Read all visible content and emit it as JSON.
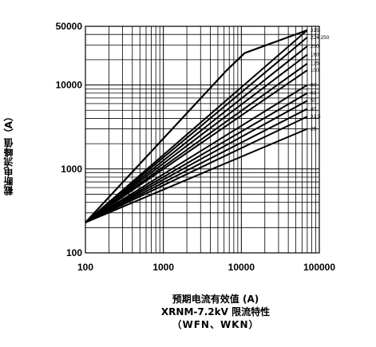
{
  "chart_data": {
    "type": "line",
    "title": "XRNM-7.2kV 限流特性",
    "subtitle": "（WFN、WKN）",
    "xlabel": "预期电流有效值 (A)",
    "ylabel": "截断电流峰值（A）",
    "x_scale": "log",
    "y_scale": "log",
    "xlim": [
      100,
      100000
    ],
    "ylim": [
      100,
      50000
    ],
    "x_ticks": [
      "100",
      "1000",
      "10000",
      "100000"
    ],
    "y_ticks": [
      "50000",
      "10000",
      "1000",
      "100"
    ],
    "grid": true,
    "envelope": {
      "x": [
        100,
        6500,
        11000,
        70000
      ],
      "y": [
        230,
        15000,
        24000,
        45000
      ]
    },
    "series": [
      {
        "name": "315",
        "x_end": 70000,
        "y_end": 45000
      },
      {
        "name": "224 250",
        "x_end": 70000,
        "y_end": 37000
      },
      {
        "name": "200",
        "x_end": 70000,
        "y_end": 29000
      },
      {
        "name": "160",
        "x_end": 70000,
        "y_end": 23000
      },
      {
        "name": "125",
        "x_end": 70000,
        "y_end": 18000
      },
      {
        "name": "100",
        "x_end": 70000,
        "y_end": 15000
      },
      {
        "name": "80",
        "x_end": 70000,
        "y_end": 10000
      },
      {
        "name": "63",
        "x_end": 70000,
        "y_end": 8000
      },
      {
        "name": "50",
        "x_end": 70000,
        "y_end": 6500
      },
      {
        "name": "40",
        "x_end": 70000,
        "y_end": 5200
      },
      {
        "name": "31.5",
        "x_end": 70000,
        "y_end": 4200
      },
      {
        "name": "25",
        "x_end": 70000,
        "y_end": 3000
      }
    ]
  }
}
